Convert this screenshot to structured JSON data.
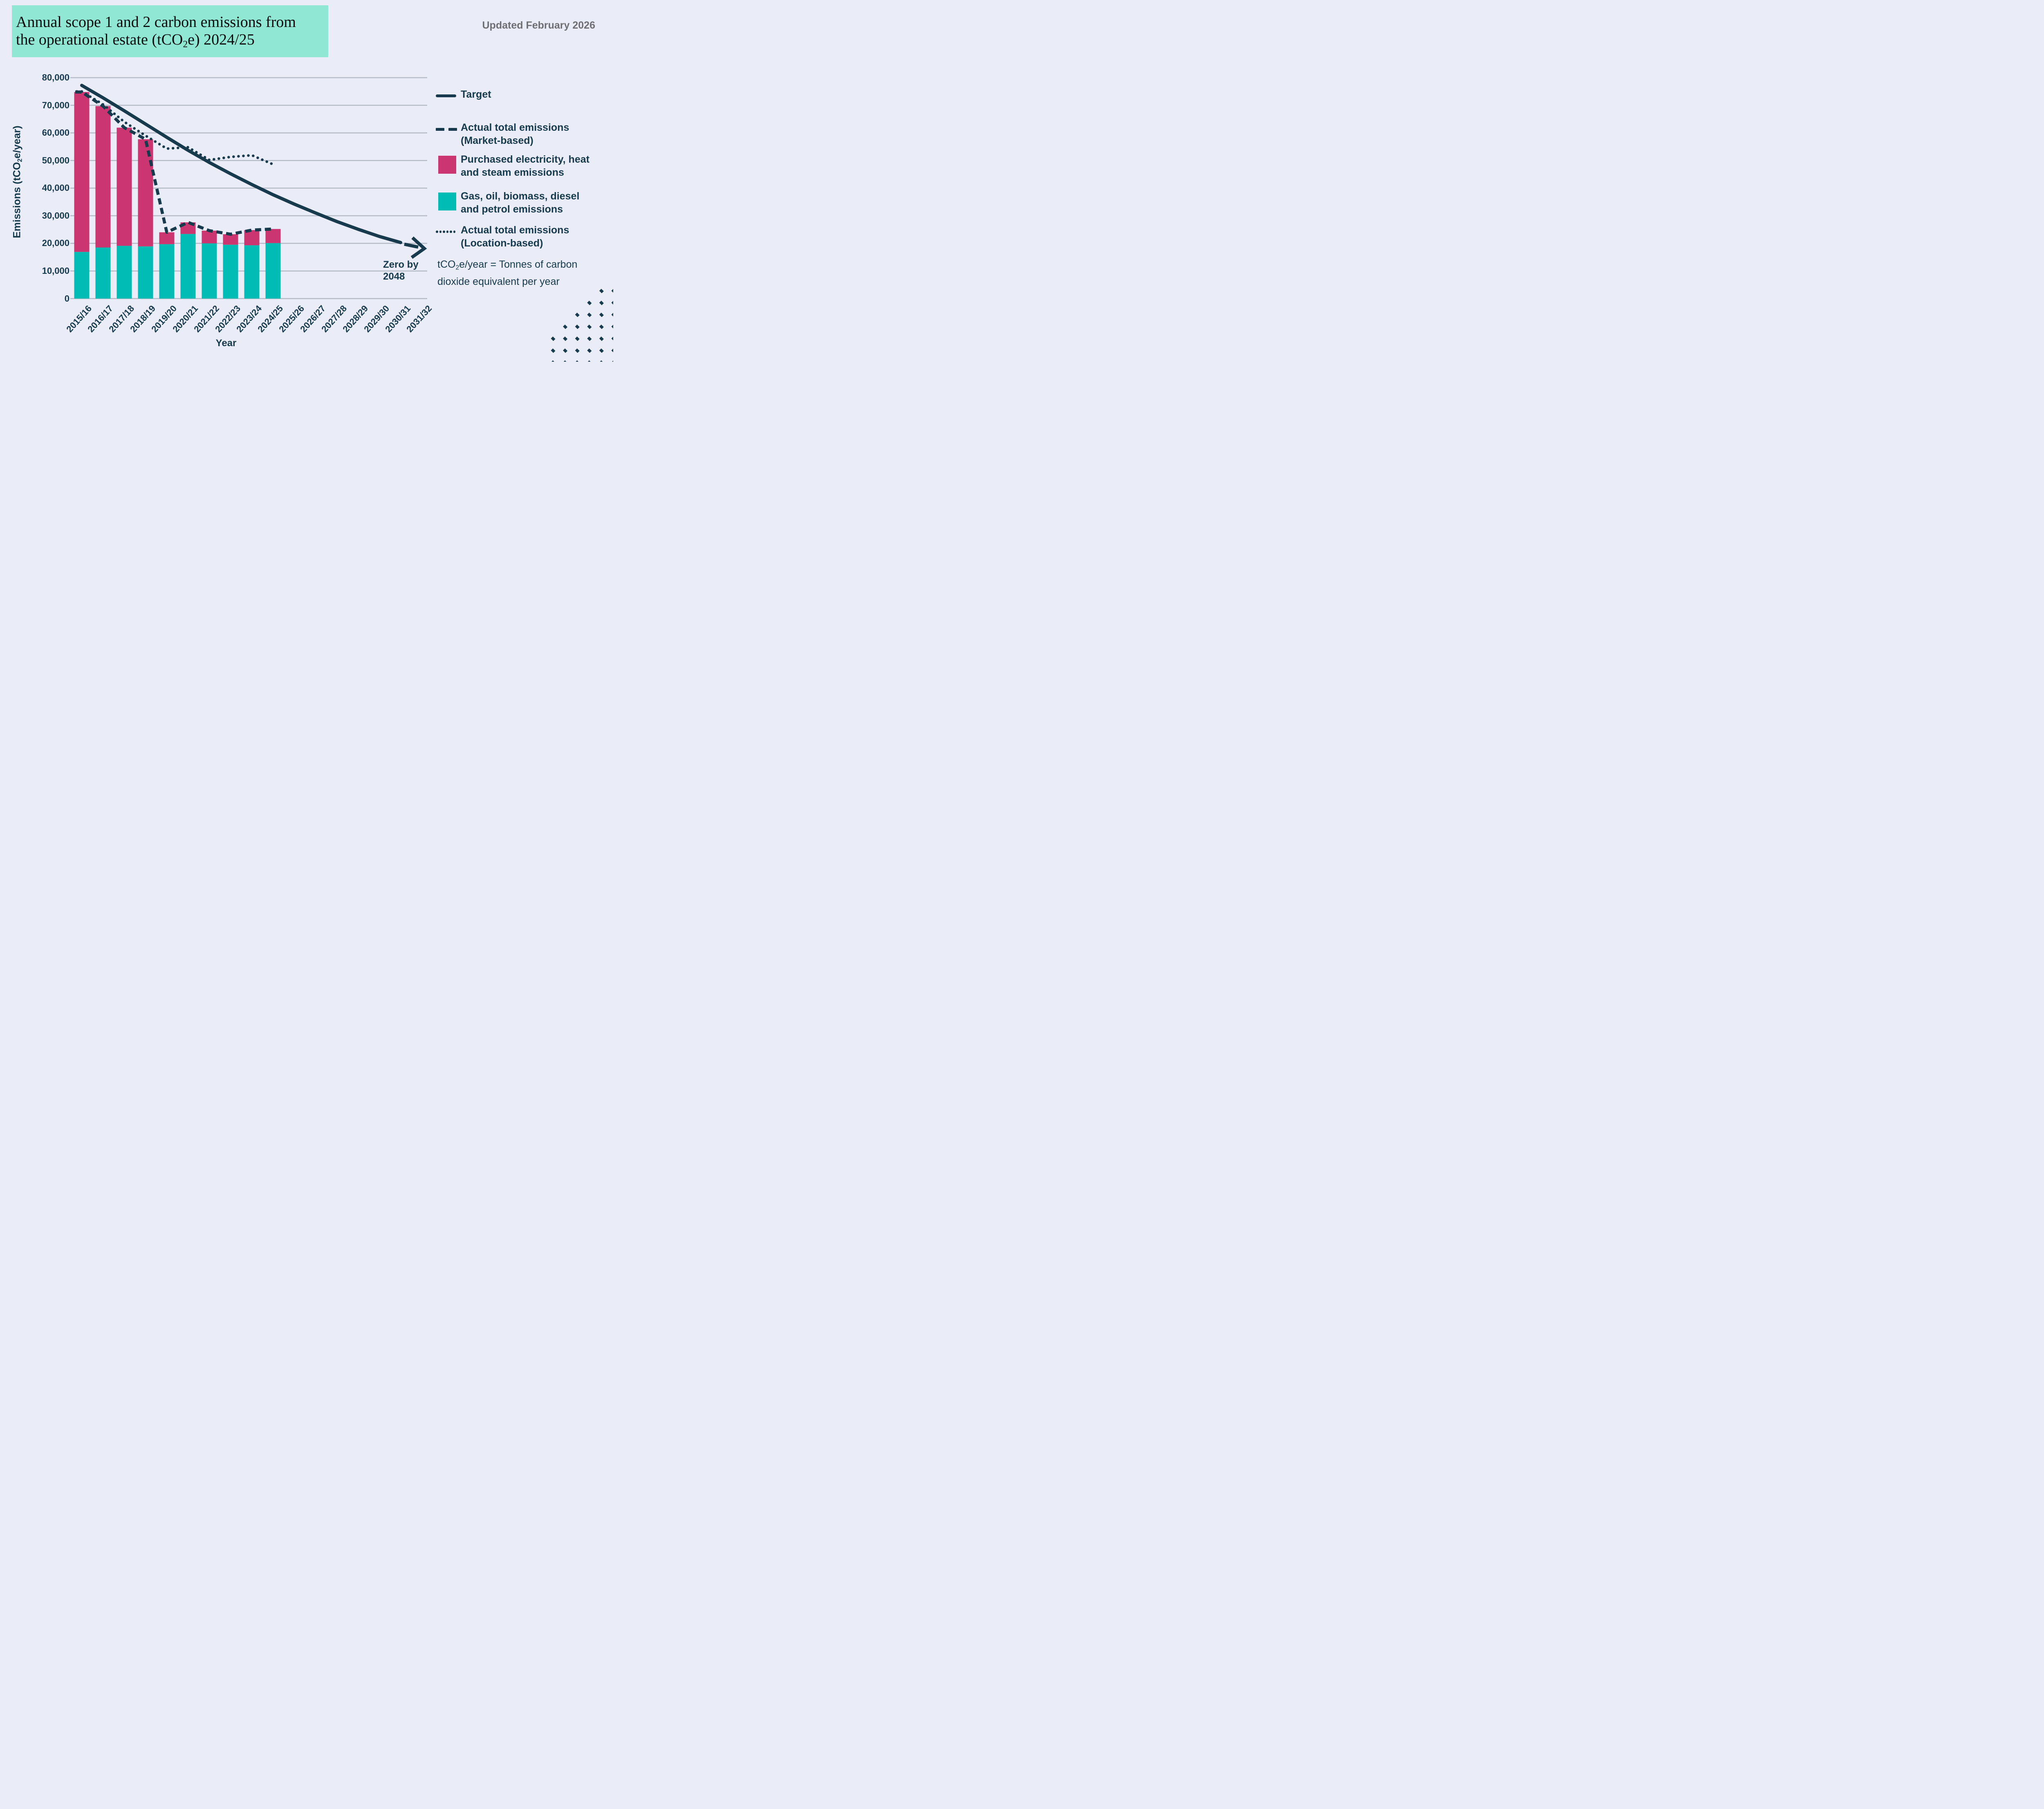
{
  "header": {
    "title_line1": "Annual scope 1 and 2 carbon emissions from",
    "title_line2_pre": "the operational estate (tCO",
    "title_line2_sub": "2",
    "title_line2_post": "e) 2024/25",
    "updated": "Updated February 2026"
  },
  "y_axis": {
    "title_pre": "Emissions (tCO",
    "title_sub": "2",
    "title_post": "e/year)",
    "ticks": [
      "0",
      "10,000",
      "20,000",
      "30,000",
      "40,000",
      "50,000",
      "60,000",
      "70,000",
      "80,000"
    ]
  },
  "x_axis": {
    "title": "Year"
  },
  "annotation": {
    "line1": "Zero by",
    "line2": "2048"
  },
  "legend": {
    "items": [
      {
        "glyph": "solid-line",
        "lines": [
          "Target",
          ""
        ]
      },
      {
        "glyph": "dashed-line",
        "lines": [
          "Actual total emissions",
          "(Market-based)"
        ]
      },
      {
        "glyph": "pink-swatch",
        "lines": [
          "Purchased electricity, heat",
          "and steam emissions"
        ]
      },
      {
        "glyph": "teal-swatch",
        "lines": [
          "Gas, oil, biomass, diesel",
          "and petrol emissions"
        ]
      },
      {
        "glyph": "dotted-line",
        "lines": [
          "Actual total emissions",
          "(Location-based)"
        ]
      }
    ]
  },
  "footnote": {
    "pre": "tCO",
    "sub": "2",
    "post": "e/year = Tonnes of carbon",
    "line2": "dioxide equivalent per year"
  },
  "colors": {
    "background": "#EAECF8",
    "title_block": "#8FE7D4",
    "navy": "#173B4C",
    "pink": "#CB3570",
    "teal": "#00BCB4",
    "gridline": "#B4BAC6",
    "updated_gray": "#6E6E73"
  },
  "chart_data": {
    "type": "bar",
    "title": "Annual scope 1 and 2 carbon emissions from the operational estate (tCO2e) 2024/25",
    "xlabel": "Year",
    "ylabel": "Emissions (tCO2e/year)",
    "ylim": [
      0,
      80000
    ],
    "ytick_step": 10000,
    "grid": "horizontal",
    "legend_position": "right",
    "categories": [
      "2015/16",
      "2016/17",
      "2017/18",
      "2018/19",
      "2019/20",
      "2020/21",
      "2021/22",
      "2022/23",
      "2023/24",
      "2024/25",
      "2025/26",
      "2026/27",
      "2027/28",
      "2028/29",
      "2029/30",
      "2030/31",
      "2031/32"
    ],
    "series": [
      {
        "name": "Gas, oil, biomass, diesel and petrol emissions",
        "type": "bar-stack",
        "color": "#00BCB4",
        "values": [
          16900,
          18500,
          19100,
          18900,
          19700,
          23400,
          20000,
          19500,
          19300,
          20100
        ]
      },
      {
        "name": "Purchased electricity, heat and steam emissions",
        "type": "bar-stack",
        "color": "#CB3570",
        "values": [
          57900,
          51200,
          42800,
          38800,
          4300,
          4200,
          4600,
          3800,
          5500,
          5100
        ]
      },
      {
        "name": "Actual total emissions (Market-based)",
        "type": "dashed-line",
        "color": "#173B4C",
        "values": [
          74800,
          69700,
          61900,
          57700,
          24000,
          27600,
          24600,
          23300,
          24800,
          25200
        ]
      },
      {
        "name": "Actual total emissions (Location-based)",
        "type": "dotted-line",
        "color": "#173B4C",
        "values": [
          75000,
          70300,
          64000,
          59000,
          54300,
          54800,
          50200,
          51300,
          51900,
          48600
        ]
      },
      {
        "name": "Target",
        "type": "solid-line",
        "color": "#173B4C",
        "values": [
          77200,
          72700,
          68000,
          63200,
          58400,
          53700,
          49300,
          45200,
          41300,
          37600,
          34200,
          31000,
          27900,
          25100,
          22500,
          20300
        ]
      }
    ],
    "target_arrow": {
      "points_to_category": "2031/32",
      "annotation": "Zero by 2048"
    }
  }
}
